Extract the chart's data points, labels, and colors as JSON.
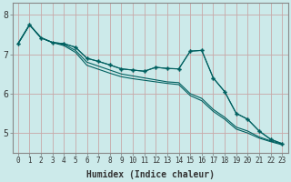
{
  "xlabel": "Humidex (Indice chaleur)",
  "ylabel": "",
  "bg_color": "#cceaea",
  "grid_color": "#c8a8a8",
  "line_color": "#006060",
  "xlim": [
    -0.5,
    23.5
  ],
  "ylim": [
    4.5,
    8.3
  ],
  "yticks": [
    5,
    6,
    7,
    8
  ],
  "xticks": [
    0,
    1,
    2,
    3,
    4,
    5,
    6,
    7,
    8,
    9,
    10,
    11,
    12,
    13,
    14,
    15,
    16,
    17,
    18,
    19,
    20,
    21,
    22,
    23
  ],
  "series_no_marker": [
    [
      7.27,
      7.75,
      7.42,
      7.3,
      7.25,
      7.1,
      6.8,
      6.7,
      6.6,
      6.5,
      6.45,
      6.4,
      6.35,
      6.3,
      6.28,
      6.0,
      5.88,
      5.6,
      5.4,
      5.15,
      5.05,
      4.9,
      4.8,
      4.72
    ],
    [
      7.27,
      7.75,
      7.42,
      7.3,
      7.22,
      7.05,
      6.72,
      6.62,
      6.52,
      6.43,
      6.38,
      6.34,
      6.3,
      6.26,
      6.23,
      5.95,
      5.82,
      5.55,
      5.35,
      5.1,
      5.0,
      4.87,
      4.78,
      4.7
    ]
  ],
  "series_with_marker": [
    [
      7.27,
      7.75,
      7.42,
      7.3,
      7.27,
      7.18,
      6.9,
      6.82,
      6.73,
      6.63,
      6.6,
      6.57,
      6.67,
      6.64,
      6.63,
      7.08,
      7.1,
      6.4,
      6.05,
      5.5,
      5.35,
      5.05,
      4.84,
      4.73
    ],
    [
      7.27,
      7.75,
      7.42,
      7.3,
      7.27,
      7.18,
      6.9,
      6.82,
      6.73,
      6.63,
      6.6,
      6.57,
      6.67,
      6.64,
      6.63,
      7.08,
      7.1,
      6.4,
      6.05,
      5.5,
      5.35,
      5.05,
      4.84,
      4.73
    ]
  ]
}
